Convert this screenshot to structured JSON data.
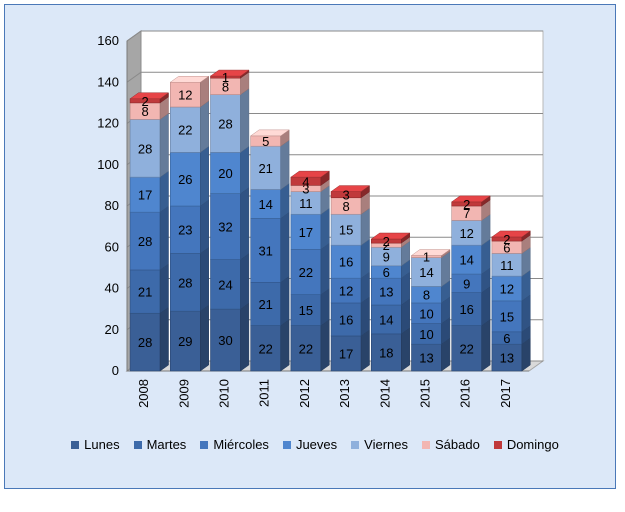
{
  "chart_data": {
    "type": "bar",
    "stacked": true,
    "three_d": true,
    "title": "",
    "xlabel": "",
    "ylabel": "",
    "ylim": [
      0,
      160
    ],
    "yticks": [
      "0",
      "20",
      "40",
      "60",
      "80",
      "100",
      "120",
      "140",
      "160"
    ],
    "grid": true,
    "legend_position": "bottom",
    "categories": [
      "2008",
      "2009",
      "2010",
      "2011",
      "2012",
      "2013",
      "2014",
      "2015",
      "2016",
      "2017"
    ],
    "series": [
      {
        "name": "Lunes",
        "color": "#3a5f96",
        "values": [
          28,
          29,
          30,
          22,
          22,
          17,
          18,
          13,
          22,
          13
        ]
      },
      {
        "name": "Martes",
        "color": "#3d6aaa",
        "values": [
          21,
          28,
          24,
          21,
          15,
          16,
          14,
          10,
          16,
          6
        ]
      },
      {
        "name": "Miércoles",
        "color": "#4476bd",
        "values": [
          28,
          23,
          32,
          31,
          22,
          12,
          13,
          10,
          9,
          15
        ]
      },
      {
        "name": "Jueves",
        "color": "#4f86cf",
        "values": [
          17,
          26,
          20,
          14,
          17,
          16,
          6,
          8,
          14,
          12
        ]
      },
      {
        "name": "Viernes",
        "color": "#8fb0dc",
        "values": [
          28,
          22,
          28,
          21,
          11,
          15,
          9,
          14,
          12,
          11
        ]
      },
      {
        "name": "Sábado",
        "color": "#f2b6b2",
        "values": [
          8,
          12,
          8,
          5,
          3,
          8,
          2,
          1,
          7,
          6
        ]
      },
      {
        "name": "Domingo",
        "color": "#c0393b",
        "values": [
          2,
          0,
          1,
          0,
          4,
          3,
          2,
          0,
          2,
          2
        ]
      }
    ]
  }
}
